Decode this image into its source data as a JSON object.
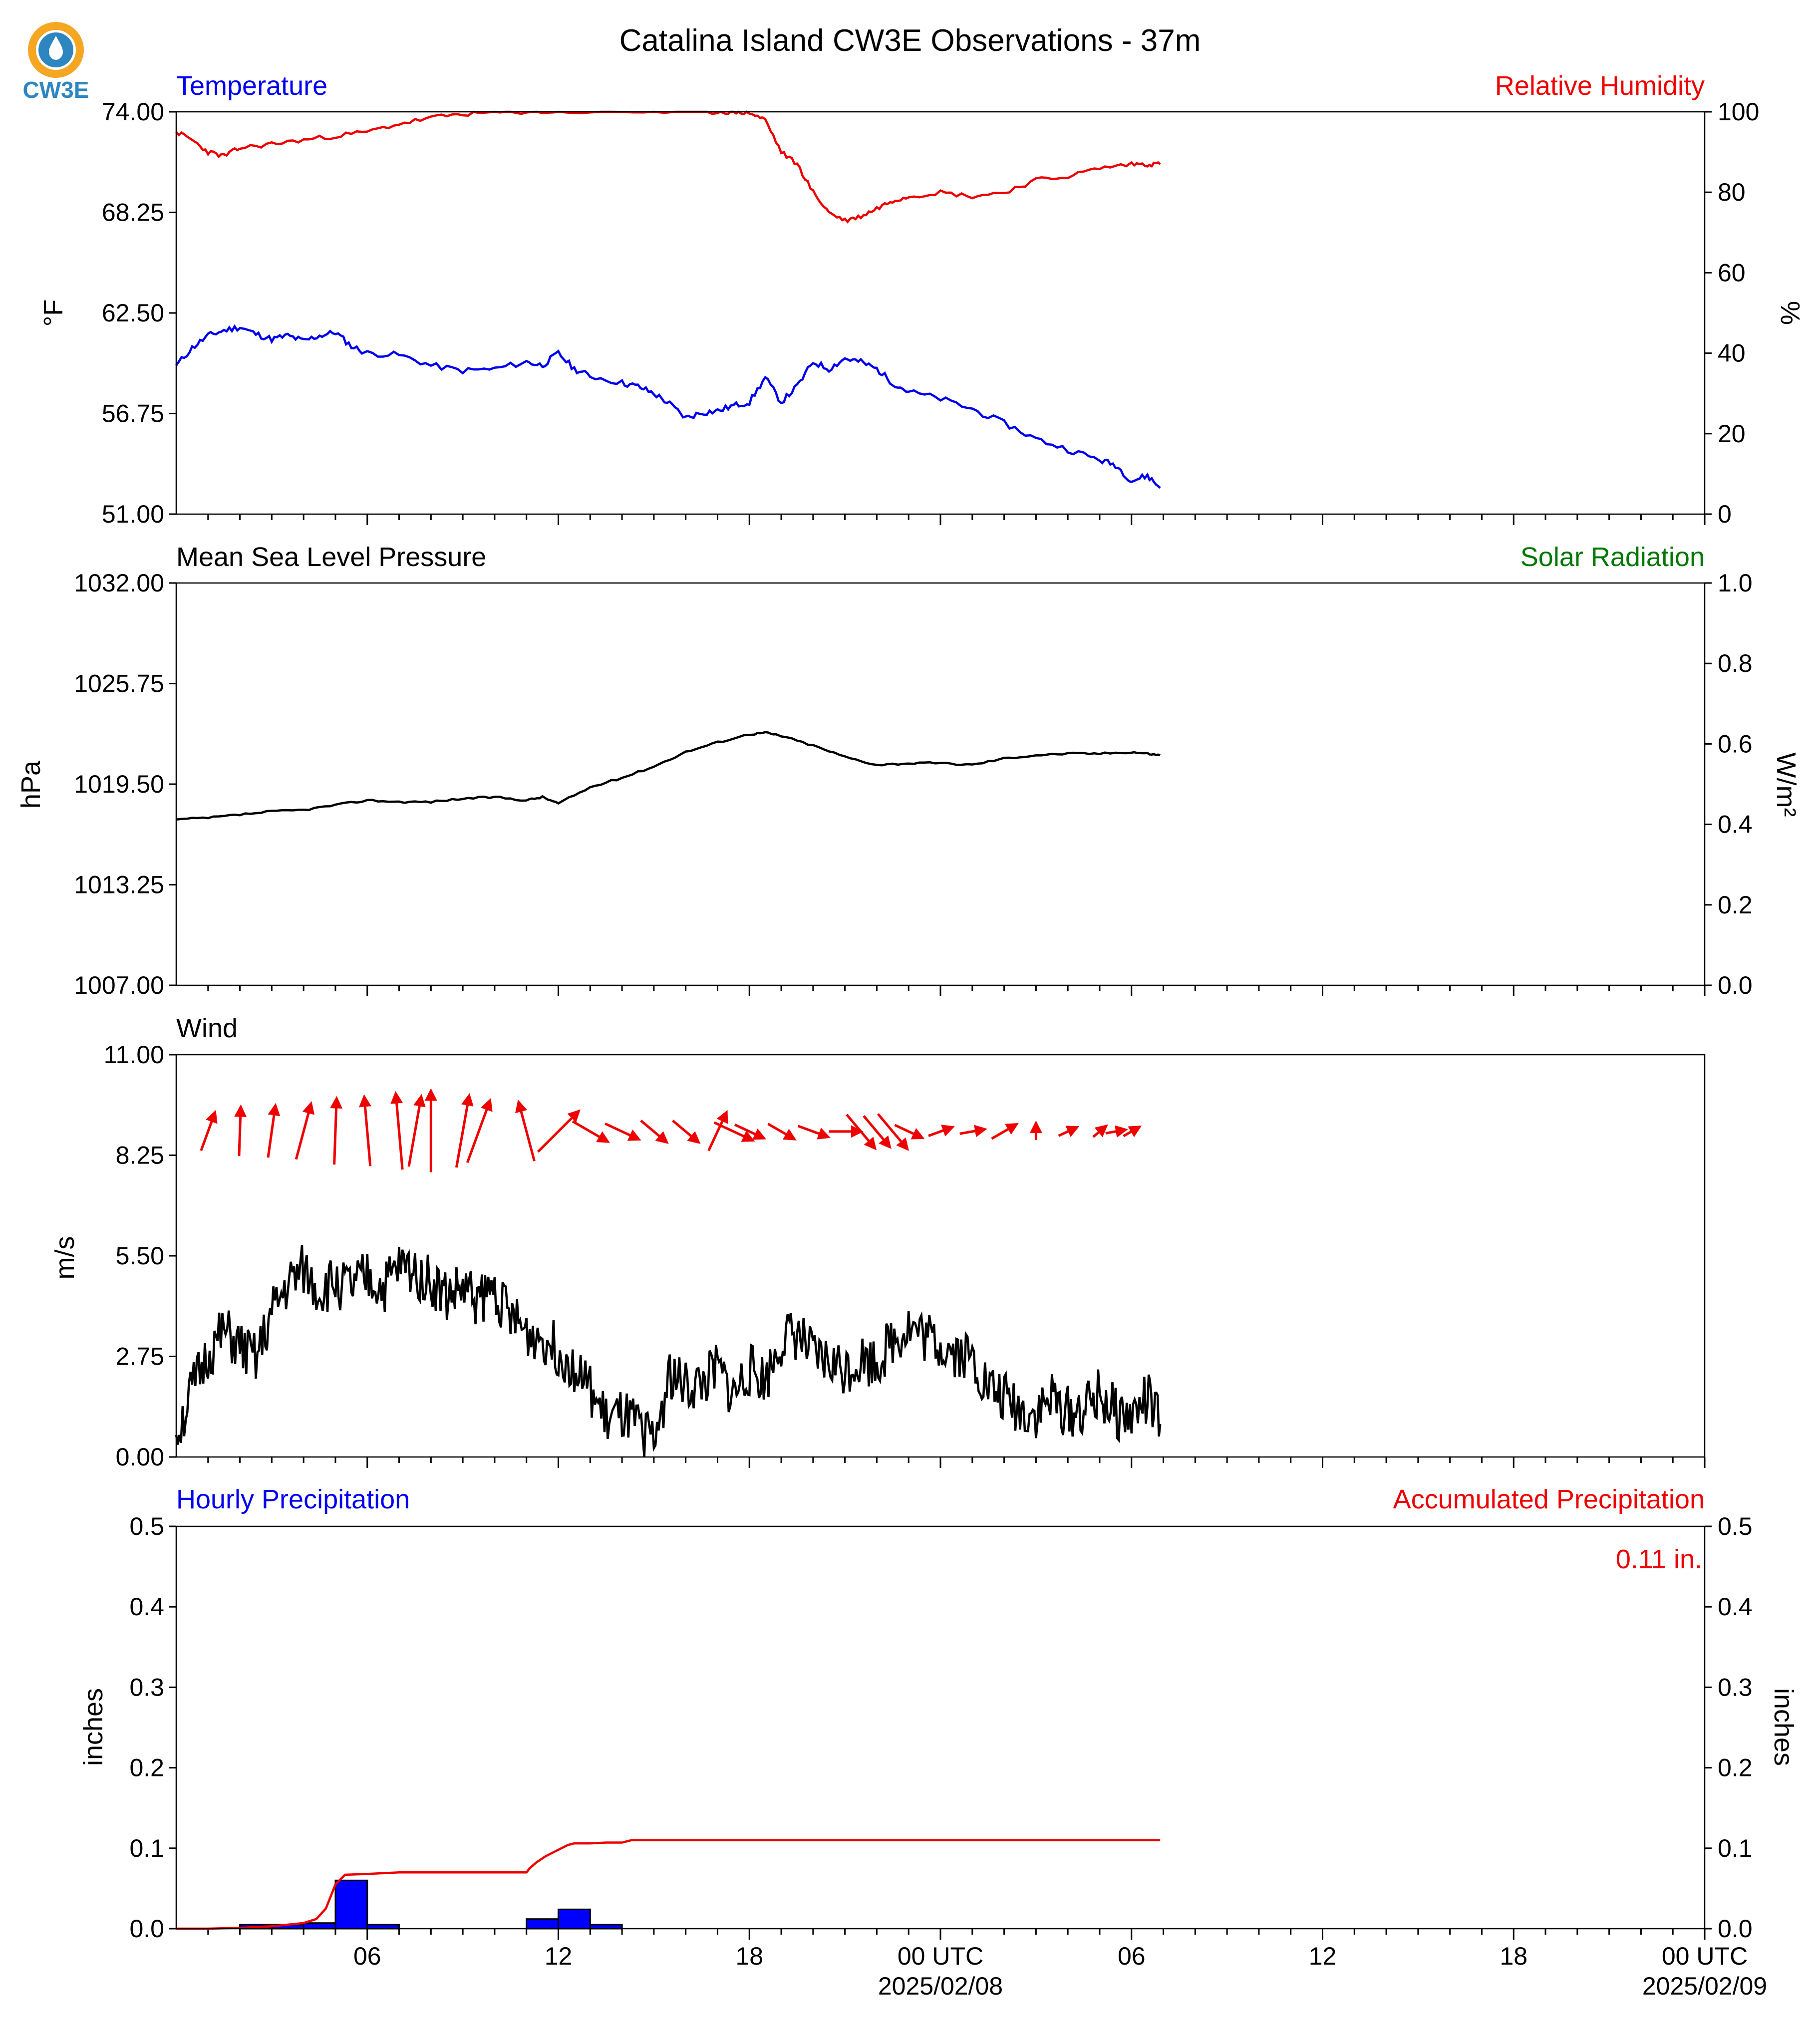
{
  "header": {
    "title": "Catalina Island CW3E Observations - 37m",
    "logo_text": "CW3E"
  },
  "colors": {
    "temperature": "#0000ee",
    "humidity": "#ee0000",
    "solar": "#007700",
    "black": "#000000",
    "bar_fill": "#0000ff",
    "logo_orange": "#f5a623",
    "logo_blue": "#2e86c1"
  },
  "x_axis": {
    "start": "2025-02-07 00:00 UTC",
    "end": "2025-02-09 00:00 UTC",
    "tick_labels": [
      {
        "hour": 6,
        "label": "06"
      },
      {
        "hour": 12,
        "label": "12"
      },
      {
        "hour": 18,
        "label": "18"
      },
      {
        "hour": 24,
        "label": "00 UTC",
        "date": "2025/02/08"
      },
      {
        "hour": 30,
        "label": "06"
      },
      {
        "hour": 36,
        "label": "12"
      },
      {
        "hour": 42,
        "label": "18"
      },
      {
        "hour": 48,
        "label": "00 UTC",
        "date": "2025/02/09"
      }
    ]
  },
  "chart_data": [
    {
      "type": "line",
      "title": "",
      "left_label": "Temperature",
      "right_label": "Relative Humidity",
      "ylabel": "°F",
      "ylabel_right": "%",
      "ylim": [
        51,
        74
      ],
      "ylim_right": [
        0,
        100
      ],
      "yticks": [
        "51.00",
        "56.75",
        "62.50",
        "68.25",
        "74.00"
      ],
      "yticks_right": [
        "0",
        "20",
        "40",
        "60",
        "80",
        "100"
      ],
      "x_unit": "hours since 2025-02-07 00 UTC",
      "series": [
        {
          "name": "Temperature",
          "axis": "left",
          "x": [
            0,
            0.5,
            1,
            1.5,
            2,
            2.5,
            3,
            3.5,
            4,
            4.5,
            5,
            5.5,
            6,
            7,
            8,
            9,
            10,
            11,
            11.5,
            12,
            12.5,
            13,
            14,
            14.5,
            15,
            15.5,
            16,
            16.5,
            17,
            17.5,
            18,
            18.5,
            19,
            19.5,
            20,
            20.5,
            21,
            21.5,
            22,
            22.5,
            23,
            24,
            25,
            26,
            27,
            28,
            29,
            29.5,
            30,
            30.5,
            30.9
          ],
          "y": [
            59.5,
            60.5,
            61.2,
            61.5,
            61.7,
            61.3,
            61.0,
            61.2,
            60.9,
            61.2,
            61.4,
            60.6,
            60.2,
            60.1,
            59.5,
            59.2,
            59.3,
            59.7,
            59.5,
            60.2,
            59.3,
            58.9,
            58.5,
            58.3,
            57.9,
            57.3,
            56.5,
            56.8,
            56.9,
            57.2,
            57.4,
            58.8,
            57.4,
            58.3,
            59.7,
            59.3,
            59.9,
            59.7,
            59.3,
            58.5,
            58.0,
            57.6,
            57.0,
            56.2,
            55.3,
            54.7,
            54.1,
            53.8,
            52.9,
            53.2,
            52.5
          ]
        },
        {
          "name": "Relative Humidity",
          "axis": "right",
          "x": [
            0,
            0.5,
            1,
            1.5,
            2,
            3,
            4,
            5,
            6,
            7,
            8,
            9,
            10,
            11,
            12,
            14,
            16,
            17,
            17.5,
            18,
            18.5,
            19,
            19.5,
            20,
            20.5,
            21,
            21.5,
            22,
            22.5,
            23,
            24,
            25,
            26,
            27,
            28,
            29,
            30,
            30.5,
            30.9
          ],
          "y": [
            95,
            93,
            90,
            89,
            91,
            92,
            93,
            94,
            95,
            97,
            98.5,
            99.5,
            99.8,
            100,
            100,
            100,
            100,
            100,
            100,
            99.8,
            98,
            90,
            87,
            80,
            75,
            73,
            74,
            76,
            78,
            79,
            80,
            79,
            80,
            83,
            84,
            86,
            87,
            87,
            87
          ]
        }
      ]
    },
    {
      "type": "line",
      "title": "",
      "left_label": "Mean Sea Level Pressure",
      "right_label": "Solar Radiation",
      "ylabel": "hPa",
      "ylabel_right": "W/m²",
      "ylim": [
        1007,
        1032
      ],
      "ylim_right": [
        0,
        1
      ],
      "yticks": [
        "1007.00",
        "1013.25",
        "1019.50",
        "1025.75",
        "1032.00"
      ],
      "yticks_right": [
        "0.0",
        "0.2",
        "0.4",
        "0.6",
        "0.8",
        "1.0"
      ],
      "series": [
        {
          "name": "Mean Sea Level Pressure",
          "axis": "left",
          "x": [
            0,
            1,
            2,
            3,
            4,
            5,
            6,
            7,
            8,
            9,
            10,
            11,
            11.5,
            12,
            13,
            14,
            15,
            16,
            17,
            18,
            18.5,
            19,
            20,
            21,
            22,
            23,
            24,
            25,
            26,
            27,
            28,
            29,
            30,
            30.5,
            30.9
          ],
          "y": [
            1017.3,
            1017.4,
            1017.6,
            1017.8,
            1017.9,
            1018.2,
            1018.5,
            1018.4,
            1018.4,
            1018.6,
            1018.7,
            1018.5,
            1018.7,
            1018.3,
            1019.3,
            1019.9,
            1020.6,
            1021.5,
            1022.1,
            1022.6,
            1022.7,
            1022.5,
            1021.9,
            1021.2,
            1020.7,
            1020.8,
            1020.8,
            1020.7,
            1021.1,
            1021.3,
            1021.4,
            1021.4,
            1021.5,
            1021.4,
            1021.3
          ]
        }
      ]
    },
    {
      "type": "line",
      "title": "",
      "left_label": "Wind",
      "ylabel": "m/s",
      "ylim": [
        0,
        11
      ],
      "yticks": [
        "0.00",
        "2.75",
        "5.50",
        "8.25",
        "11.00"
      ],
      "series": [
        {
          "name": "Wind",
          "x": [
            0,
            0.5,
            1,
            1.5,
            2,
            2.5,
            3,
            3.5,
            4,
            4.5,
            5,
            5.5,
            6,
            6.5,
            7,
            7.5,
            8,
            8.5,
            9,
            9.5,
            10,
            10.5,
            11,
            11.5,
            12,
            12.5,
            13,
            13.5,
            14,
            14.5,
            15,
            15.5,
            16,
            16.5,
            17,
            17.5,
            18,
            18.5,
            19,
            19.5,
            20,
            20.5,
            21,
            21.5,
            22,
            22.5,
            23,
            23.5,
            24,
            24.5,
            25,
            25.5,
            26,
            26.5,
            27,
            27.5,
            28,
            28.5,
            29,
            29.5,
            30,
            30.5,
            30.9
          ],
          "y": [
            0.6,
            1.8,
            2.8,
            3.4,
            3.0,
            2.6,
            3.9,
            4.7,
            5.1,
            4.5,
            4.8,
            4.6,
            4.9,
            4.6,
            5.2,
            5.1,
            4.8,
            4.4,
            4.6,
            4.3,
            4.6,
            3.8,
            3.4,
            3.3,
            2.9,
            2.5,
            1.8,
            1.0,
            1.1,
            0.8,
            0.4,
            2.3,
            1.9,
            2.0,
            2.4,
            1.7,
            2.4,
            2.1,
            3.2,
            3.4,
            2.7,
            2.6,
            2.4,
            2.7,
            2.6,
            3.2,
            3.6,
            3.3,
            3.1,
            2.9,
            2.7,
            1.9,
            1.6,
            1.3,
            1.2,
            1.6,
            1.2,
            1.3,
            1.7,
            1.2,
            1.1,
            1.6,
            0.9
          ]
        },
        {
          "name": "Wind direction",
          "x": [
            1,
            2,
            3,
            4,
            5,
            6,
            7,
            7.5,
            8,
            9,
            9.5,
            11,
            12,
            13,
            14,
            15,
            16,
            17,
            17.5,
            18,
            19,
            20,
            21,
            21.5,
            22,
            22.5,
            23,
            24,
            25,
            26,
            27,
            28,
            29,
            29.5,
            30
          ],
          "dir_deg": [
            200,
            182,
            188,
            195,
            182,
            175,
            175,
            190,
            180,
            190,
            200,
            165,
            225,
            300,
            295,
            310,
            310,
            205,
            295,
            295,
            300,
            290,
            270,
            320,
            320,
            320,
            295,
            250,
            260,
            240,
            180,
            245,
            230,
            260,
            240
          ],
          "speed": [
            2.4,
            2.9,
            3.1,
            3.4,
            3.9,
            4.1,
            4.5,
            4.2,
            4.8,
            4.3,
            3.9,
            3.6,
            3.4,
            2.4,
            2.2,
            2.0,
            2.0,
            2.5,
            2.5,
            1.9,
            1.8,
            1.9,
            1.9,
            2.6,
            2.4,
            2.7,
            1.8,
            1.5,
            1.5,
            1.7,
            1.0,
            1.2,
            1.0,
            1.2,
            1.1
          ]
        }
      ]
    },
    {
      "type": "bar",
      "title": "",
      "left_label": "Hourly Precipitation",
      "right_label": "Accumulated Precipitation",
      "annotation": "0.11 in.",
      "ylabel": "inches",
      "ylabel_right": "inches",
      "ylim": [
        0,
        0.5
      ],
      "ylim_right": [
        0,
        0.5
      ],
      "yticks": [
        "0.0",
        "0.1",
        "0.2",
        "0.3",
        "0.4",
        "0.5"
      ],
      "yticks_right": [
        "0.0",
        "0.1",
        "0.2",
        "0.3",
        "0.4",
        "0.5"
      ],
      "series": [
        {
          "name": "Hourly Precipitation",
          "axis": "left",
          "x_start": [
            2,
            3,
            4,
            5,
            6,
            10,
            11,
            12,
            13
          ],
          "values": [
            0.005,
            0.005,
            0.007,
            0.06,
            0.005,
            0.0,
            0.012,
            0.024,
            0.005
          ]
        },
        {
          "name": "Accumulated Precipitation",
          "axis": "right",
          "x": [
            0,
            1,
            2,
            3,
            4,
            4.4,
            4.7,
            5,
            5.3,
            6,
            7,
            8,
            10,
            11,
            11.1,
            11.3,
            11.6,
            12,
            12.3,
            12.5,
            13,
            13.5,
            14,
            14.2,
            14.3,
            18,
            24,
            30,
            30.9
          ],
          "y": [
            0,
            0,
            0.001,
            0.003,
            0.007,
            0.012,
            0.025,
            0.055,
            0.067,
            0.068,
            0.07,
            0.07,
            0.07,
            0.07,
            0.075,
            0.082,
            0.09,
            0.098,
            0.104,
            0.106,
            0.106,
            0.107,
            0.107,
            0.109,
            0.11,
            0.11,
            0.11,
            0.11,
            0.11
          ]
        }
      ]
    }
  ]
}
